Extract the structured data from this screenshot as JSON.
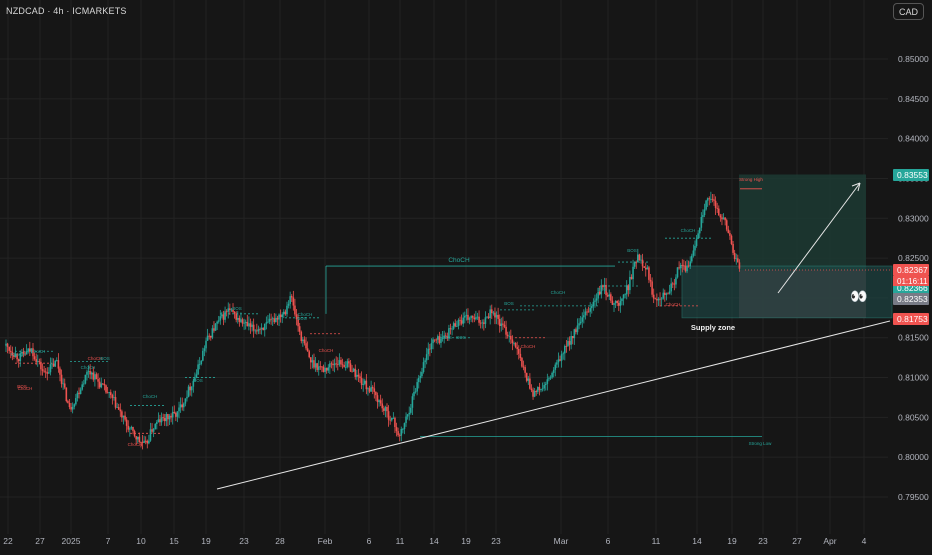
{
  "header": {
    "symbol_line": "NZDCAD · 4h · ICMARKETS",
    "currency_button": "CAD"
  },
  "colors": {
    "background": "#161616",
    "bull": "#26a69a",
    "bear": "#ef5350",
    "grid": "#232323",
    "axis_text": "#b2b5be"
  },
  "chart_data": {
    "type": "candlestick",
    "symbol": "NZDCAD",
    "timeframe": "4h",
    "exchange": "ICMARKETS",
    "y_axis": {
      "range": [
        0.792,
        0.857
      ],
      "ticks": [
        "0.85000",
        "0.84500",
        "0.84000",
        "0.83500",
        "0.83000",
        "0.82500",
        "0.82000",
        "0.81500",
        "0.81000",
        "0.80500",
        "0.80000",
        "0.79500"
      ]
    },
    "x_axis": {
      "ticks": [
        "22",
        "27",
        "2025",
        "7",
        "10",
        "15",
        "19",
        "23",
        "28",
        "Feb",
        "6",
        "11",
        "14",
        "19",
        "23",
        "Mar",
        "6",
        "11",
        "14",
        "19",
        "23",
        "27",
        "Apr",
        "4"
      ]
    },
    "close_path": [
      [
        0,
        0.814
      ],
      [
        2,
        0.8125
      ],
      [
        4,
        0.8135
      ],
      [
        6,
        0.8105
      ],
      [
        8,
        0.812
      ],
      [
        10,
        0.806
      ],
      [
        11,
        0.8075
      ],
      [
        13,
        0.811
      ],
      [
        15,
        0.809
      ],
      [
        17,
        0.807
      ],
      [
        19,
        0.804
      ],
      [
        21,
        0.802
      ],
      [
        22,
        0.8015
      ],
      [
        23,
        0.8035
      ],
      [
        24,
        0.8045
      ],
      [
        27,
        0.8055
      ],
      [
        28.5,
        0.808
      ],
      [
        30,
        0.8105
      ],
      [
        31.5,
        0.8145
      ],
      [
        33,
        0.8165
      ],
      [
        35,
        0.8185
      ],
      [
        37,
        0.817
      ],
      [
        39,
        0.816
      ],
      [
        41,
        0.8165
      ],
      [
        42.5,
        0.8175
      ],
      [
        44,
        0.8185
      ],
      [
        44.8,
        0.8205
      ],
      [
        45.5,
        0.818
      ],
      [
        46.5,
        0.815
      ],
      [
        48,
        0.812
      ],
      [
        50,
        0.811
      ],
      [
        52,
        0.812
      ],
      [
        54,
        0.8115
      ],
      [
        56,
        0.8095
      ],
      [
        58,
        0.808
      ],
      [
        59.5,
        0.806
      ],
      [
        61,
        0.8045
      ],
      [
        62,
        0.8025
      ],
      [
        63.5,
        0.806
      ],
      [
        65,
        0.81
      ],
      [
        67,
        0.8145
      ],
      [
        69,
        0.815
      ],
      [
        71,
        0.817
      ],
      [
        73,
        0.8175
      ],
      [
        75,
        0.817
      ],
      [
        76.5,
        0.8185
      ],
      [
        78,
        0.8165
      ],
      [
        80,
        0.8145
      ],
      [
        81.5,
        0.811
      ],
      [
        83,
        0.808
      ],
      [
        85,
        0.809
      ],
      [
        87,
        0.812
      ],
      [
        89,
        0.815
      ],
      [
        91,
        0.8175
      ],
      [
        93,
        0.82
      ],
      [
        94,
        0.8215
      ],
      [
        95,
        0.82
      ],
      [
        96.5,
        0.819
      ],
      [
        98,
        0.8215
      ],
      [
        99.5,
        0.8255
      ],
      [
        101,
        0.8235
      ],
      [
        102,
        0.82
      ],
      [
        103.5,
        0.8205
      ],
      [
        105,
        0.8215
      ],
      [
        106,
        0.824
      ],
      [
        107,
        0.8235
      ],
      [
        108,
        0.825
      ],
      [
        109,
        0.8285
      ],
      [
        110,
        0.8315
      ],
      [
        111,
        0.8325
      ],
      [
        112,
        0.831
      ],
      [
        113,
        0.83
      ],
      [
        114,
        0.8275
      ],
      [
        115,
        0.8245
      ],
      [
        115.5,
        0.8237
      ]
    ],
    "last_price": 0.82367,
    "countdown": "01:16:11",
    "price_labels": [
      {
        "value": "0.83553",
        "type": "target"
      },
      {
        "value": "0.82367",
        "type": "last"
      },
      {
        "value": "0.82366",
        "type": "bid"
      },
      {
        "value": "0.82353",
        "type": "entry"
      },
      {
        "value": "0.81753",
        "type": "stop"
      }
    ],
    "annotations": {
      "chochs": [
        "ChoCH",
        "ChoCH",
        "ChoCH",
        "ChoCH",
        "ChoCH",
        "ChoCH",
        "ChoCH",
        "ChoCH",
        "ChoCH",
        "ChoCH",
        "ChoCH",
        "ChoCH",
        "ChoCH",
        "ChoCH"
      ],
      "bos_labels": [
        "BOS",
        "BOS",
        "BOS",
        "BOS",
        "BOS",
        "BOS",
        "BOS",
        "BOS",
        "BOS",
        "BOS"
      ],
      "supply_zone_label": "Supply zone",
      "strong_high": "Strong High",
      "strong_low": "Strong Low",
      "emoji": "👀"
    },
    "trade_setup": {
      "entry": 0.8235,
      "target": 0.8355,
      "stop": 0.8175
    },
    "grid": true
  }
}
